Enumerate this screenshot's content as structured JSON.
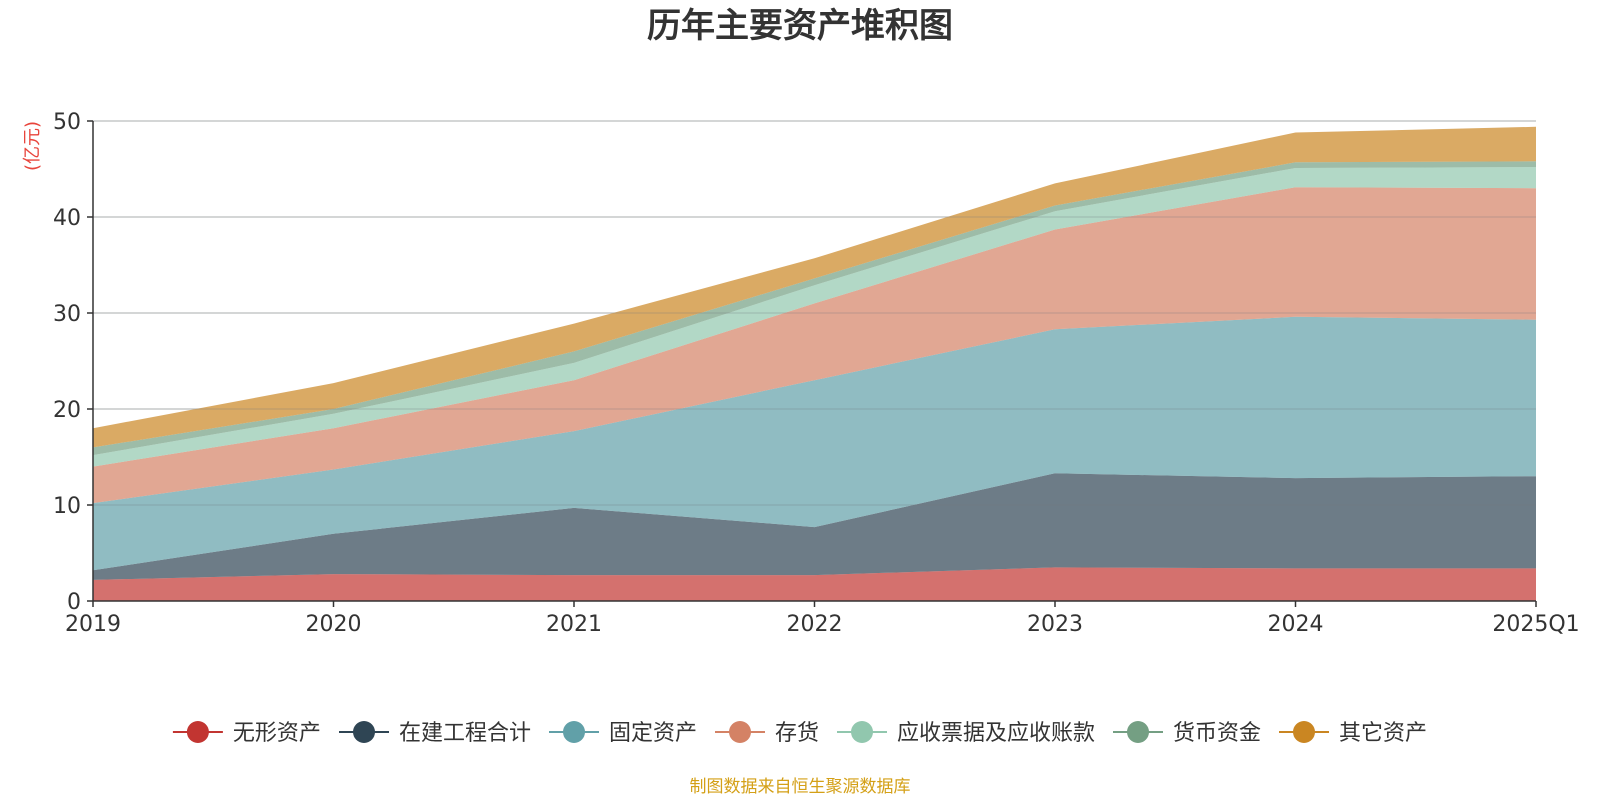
{
  "chart_data": {
    "type": "area",
    "stacked": true,
    "title": "历年主要资产堆积图",
    "ylabel": "(亿元)",
    "xlabel": "",
    "ylim": [
      0,
      50
    ],
    "yticks": [
      0,
      10,
      20,
      30,
      40,
      50
    ],
    "categories": [
      "2019",
      "2020",
      "2021",
      "2022",
      "2023",
      "2024",
      "2025Q1"
    ],
    "series": [
      {
        "name": "无形资产",
        "color": "#c23531",
        "values": [
          2.2,
          2.8,
          2.7,
          2.7,
          3.5,
          3.4,
          3.4
        ]
      },
      {
        "name": "在建工程合计",
        "color": "#2f4554",
        "values": [
          1.0,
          4.2,
          7.0,
          5.0,
          9.8,
          9.4,
          9.6
        ]
      },
      {
        "name": "固定资产",
        "color": "#61a0a8",
        "values": [
          7.0,
          6.7,
          8.0,
          15.3,
          15.0,
          16.8,
          16.3
        ]
      },
      {
        "name": "存货",
        "color": "#d48265",
        "values": [
          3.8,
          4.3,
          5.3,
          8.0,
          10.4,
          13.5,
          13.7
        ]
      },
      {
        "name": "应收票据及应收账款",
        "color": "#91c7ae",
        "values": [
          1.2,
          1.5,
          1.8,
          1.9,
          1.9,
          2.0,
          2.2
        ]
      },
      {
        "name": "货币资金",
        "color": "#749f83",
        "values": [
          0.8,
          0.5,
          1.2,
          0.7,
          0.6,
          0.6,
          0.6
        ]
      },
      {
        "name": "其它资产",
        "color": "#ca8622",
        "values": [
          2.0,
          2.7,
          2.9,
          2.1,
          2.3,
          3.1,
          3.6
        ]
      }
    ],
    "legend_position": "bottom",
    "grid": true
  },
  "source_note": "制图数据来自恒生聚源数据库"
}
